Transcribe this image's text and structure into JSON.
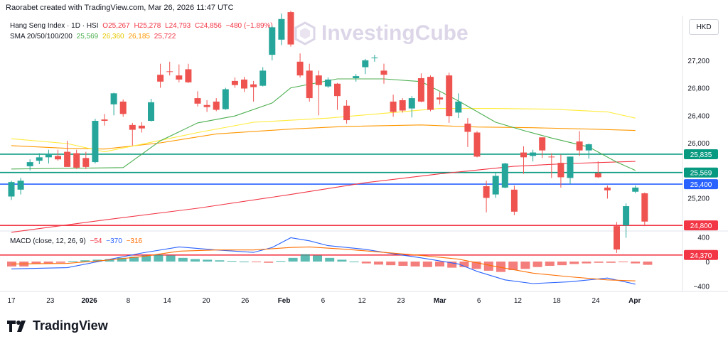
{
  "header": {
    "created_by": "Raorabet created with TradingView.com, Mar 26, 2026 11:47 UTC"
  },
  "legend": {
    "symbol": "Hang Seng Index · 1D · HSI",
    "o": "O25,267",
    "h": "H25,278",
    "l": "L24,793",
    "c": "C24,856",
    "change": "−480 (−1.89%)",
    "sma_label": "SMA 20/50/100/200",
    "sma20": "25,569",
    "sma50": "26,360",
    "sma100": "26,185",
    "sma200": "25,722",
    "macd_label": "MACD (close, 12, 26, 9)",
    "macd_hist": "−54",
    "macd_line": "−370",
    "macd_signal": "−316"
  },
  "currency_button": "HKD",
  "watermark": "InvestingCube",
  "branding": "TradingView",
  "colors": {
    "up": "#26a69a",
    "down": "#ef5350",
    "sma20": "#4caf50",
    "sma50": "#ffeb3b",
    "sma100": "#ff9800",
    "sma200": "#f23645",
    "macd_line": "#2962ff",
    "macd_signal": "#ff6d00",
    "hline_green": "#089981",
    "hline_blue": "#2962ff",
    "hline_red": "#f23645"
  },
  "chart_data": {
    "type": "candlestick",
    "price_axis": {
      "ticks": [
        "27,200",
        "26,800",
        "26,400",
        "26,000",
        "25,200"
      ],
      "tick_values": [
        27200,
        26800,
        26400,
        26000,
        25200
      ]
    },
    "horizontal_levels": [
      {
        "value": 25835,
        "label": "25,835",
        "color": "green"
      },
      {
        "value": 25569,
        "label": "25,569",
        "color": "green"
      },
      {
        "value": 25400,
        "label": "25,400",
        "color": "blue"
      },
      {
        "value": 24800,
        "label": "24,800",
        "color": "red"
      },
      {
        "value": 24370,
        "label": "24,370",
        "color": "red"
      }
    ],
    "macd_axis": {
      "ticks": [
        "400",
        "0",
        "−400"
      ],
      "tick_values": [
        400,
        0,
        -400
      ]
    },
    "time_axis": [
      "17",
      "23",
      "2026",
      "8",
      "14",
      "20",
      "26",
      "Feb",
      "6",
      "12",
      "23",
      "Mar",
      "6",
      "12",
      "18",
      "24",
      "Apr"
    ],
    "candles": [
      {
        "o": 25220,
        "h": 25450,
        "l": 25170,
        "c": 25430
      },
      {
        "o": 25320,
        "h": 25490,
        "l": 25250,
        "c": 25450
      },
      {
        "o": 25660,
        "h": 25760,
        "l": 25600,
        "c": 25720
      },
      {
        "o": 25740,
        "h": 25850,
        "l": 25690,
        "c": 25790
      },
      {
        "o": 25790,
        "h": 25900,
        "l": 25700,
        "c": 25840
      },
      {
        "o": 25810,
        "h": 25900,
        "l": 25740,
        "c": 25760
      },
      {
        "o": 25870,
        "h": 26030,
        "l": 25650,
        "c": 25650
      },
      {
        "o": 25850,
        "h": 25900,
        "l": 25620,
        "c": 25640
      },
      {
        "o": 25780,
        "h": 25870,
        "l": 25620,
        "c": 25650
      },
      {
        "o": 25720,
        "h": 26350,
        "l": 25700,
        "c": 26320
      },
      {
        "o": 26340,
        "h": 26420,
        "l": 26250,
        "c": 26320
      },
      {
        "o": 26560,
        "h": 26730,
        "l": 26400,
        "c": 26720
      },
      {
        "o": 26600,
        "h": 26630,
        "l": 26380,
        "c": 26420
      },
      {
        "o": 26260,
        "h": 26290,
        "l": 25960,
        "c": 26190
      },
      {
        "o": 26250,
        "h": 26300,
        "l": 26150,
        "c": 26210
      },
      {
        "o": 26320,
        "h": 26640,
        "l": 26310,
        "c": 26590
      },
      {
        "o": 26990,
        "h": 27150,
        "l": 26800,
        "c": 26890
      },
      {
        "o": 27040,
        "h": 27180,
        "l": 26980,
        "c": 27030
      },
      {
        "o": 26980,
        "h": 27140,
        "l": 26880,
        "c": 26920
      },
      {
        "o": 27070,
        "h": 27150,
        "l": 26870,
        "c": 26880
      },
      {
        "o": 26650,
        "h": 26750,
        "l": 26530,
        "c": 26570
      },
      {
        "o": 26550,
        "h": 26620,
        "l": 26450,
        "c": 26520
      },
      {
        "o": 26600,
        "h": 26650,
        "l": 26460,
        "c": 26480
      },
      {
        "o": 26490,
        "h": 26800,
        "l": 26480,
        "c": 26780
      },
      {
        "o": 26900,
        "h": 26950,
        "l": 26800,
        "c": 26840
      },
      {
        "o": 26920,
        "h": 26960,
        "l": 26740,
        "c": 26790
      },
      {
        "o": 26850,
        "h": 26900,
        "l": 26600,
        "c": 26810
      },
      {
        "o": 26830,
        "h": 27100,
        "l": 26820,
        "c": 27050
      },
      {
        "o": 27280,
        "h": 27700,
        "l": 27200,
        "c": 27680
      },
      {
        "o": 27500,
        "h": 27880,
        "l": 27420,
        "c": 27800
      },
      {
        "o": 27900,
        "h": 27920,
        "l": 27400,
        "c": 27430
      },
      {
        "o": 27180,
        "h": 27300,
        "l": 26950,
        "c": 26980
      },
      {
        "o": 27050,
        "h": 27150,
        "l": 26600,
        "c": 26650
      },
      {
        "o": 26980,
        "h": 27050,
        "l": 26400,
        "c": 26840
      },
      {
        "o": 26820,
        "h": 26950,
        "l": 26800,
        "c": 26920
      },
      {
        "o": 26860,
        "h": 26870,
        "l": 26480,
        "c": 26680
      },
      {
        "o": 26540,
        "h": 26620,
        "l": 26280,
        "c": 26330
      },
      {
        "o": 26940,
        "h": 27000,
        "l": 26890,
        "c": 26970
      },
      {
        "o": 27100,
        "h": 27220,
        "l": 27000,
        "c": 27200
      },
      {
        "o": 27240,
        "h": 27280,
        "l": 27180,
        "c": 27240
      },
      {
        "o": 27050,
        "h": 27150,
        "l": 26860,
        "c": 26990
      },
      {
        "o": 26600,
        "h": 26700,
        "l": 26380,
        "c": 26450
      },
      {
        "o": 26620,
        "h": 26650,
        "l": 26440,
        "c": 26470
      },
      {
        "o": 26500,
        "h": 26680,
        "l": 26370,
        "c": 26650
      },
      {
        "o": 26940,
        "h": 27010,
        "l": 26590,
        "c": 26600
      },
      {
        "o": 26960,
        "h": 26980,
        "l": 26460,
        "c": 26480
      },
      {
        "o": 26660,
        "h": 26740,
        "l": 26560,
        "c": 26630
      },
      {
        "o": 26980,
        "h": 27020,
        "l": 26290,
        "c": 26390
      },
      {
        "o": 26440,
        "h": 26720,
        "l": 26360,
        "c": 26600
      },
      {
        "o": 26280,
        "h": 26360,
        "l": 25940,
        "c": 26160
      },
      {
        "o": 26150,
        "h": 26170,
        "l": 25790,
        "c": 25800
      },
      {
        "o": 25370,
        "h": 25450,
        "l": 24990,
        "c": 25200
      },
      {
        "o": 25250,
        "h": 25560,
        "l": 25200,
        "c": 25520
      },
      {
        "o": 25350,
        "h": 25710,
        "l": 25340,
        "c": 25700
      },
      {
        "o": 25320,
        "h": 25380,
        "l": 24950,
        "c": 25000
      },
      {
        "o": 25860,
        "h": 25950,
        "l": 25550,
        "c": 25790
      },
      {
        "o": 25810,
        "h": 25900,
        "l": 25730,
        "c": 25860
      },
      {
        "o": 26080,
        "h": 26080,
        "l": 25780,
        "c": 25890
      },
      {
        "o": 25800,
        "h": 25850,
        "l": 25490,
        "c": 25790
      },
      {
        "o": 25710,
        "h": 25830,
        "l": 25350,
        "c": 25500
      },
      {
        "o": 25490,
        "h": 25800,
        "l": 25400,
        "c": 25800
      },
      {
        "o": 26020,
        "h": 26170,
        "l": 25810,
        "c": 25890
      },
      {
        "o": 25890,
        "h": 25990,
        "l": 25770,
        "c": 25980
      },
      {
        "o": 25560,
        "h": 25730,
        "l": 25490,
        "c": 25500
      },
      {
        "o": 25350,
        "h": 25380,
        "l": 25190,
        "c": 25310
      },
      {
        "o": 24790,
        "h": 24850,
        "l": 24400,
        "c": 24450
      },
      {
        "o": 24800,
        "h": 25120,
        "l": 24620,
        "c": 25080
      },
      {
        "o": 25290,
        "h": 25380,
        "l": 25270,
        "c": 25350
      },
      {
        "o": 25267,
        "h": 25278,
        "l": 24793,
        "c": 24856
      }
    ],
    "sma20": [
      [
        0,
        25620
      ],
      [
        12,
        25640
      ],
      [
        16,
        26030
      ],
      [
        20,
        26290
      ],
      [
        24,
        26390
      ],
      [
        28,
        26580
      ],
      [
        30,
        26800
      ],
      [
        35,
        26930
      ],
      [
        40,
        26930
      ],
      [
        44,
        26890
      ],
      [
        48,
        26610
      ],
      [
        52,
        26300
      ],
      [
        55,
        26180
      ],
      [
        58,
        26070
      ],
      [
        62,
        25940
      ],
      [
        65,
        25720
      ],
      [
        67,
        25600
      ]
    ],
    "sma50": [
      [
        0,
        26060
      ],
      [
        6,
        25990
      ],
      [
        10,
        25870
      ],
      [
        14,
        25980
      ],
      [
        20,
        26150
      ],
      [
        26,
        26300
      ],
      [
        34,
        26360
      ],
      [
        40,
        26430
      ],
      [
        46,
        26500
      ],
      [
        52,
        26500
      ],
      [
        58,
        26490
      ],
      [
        64,
        26450
      ],
      [
        67,
        26360
      ]
    ],
    "sma100": [
      [
        0,
        25960
      ],
      [
        6,
        25920
      ],
      [
        10,
        25910
      ],
      [
        16,
        26000
      ],
      [
        22,
        26130
      ],
      [
        30,
        26200
      ],
      [
        36,
        26240
      ],
      [
        44,
        26260
      ],
      [
        50,
        26230
      ],
      [
        56,
        26220
      ],
      [
        62,
        26200
      ],
      [
        67,
        26180
      ]
    ],
    "sma200": [
      [
        0,
        24700
      ],
      [
        10,
        24880
      ],
      [
        20,
        25050
      ],
      [
        30,
        25250
      ],
      [
        38,
        25420
      ],
      [
        46,
        25550
      ],
      [
        54,
        25660
      ],
      [
        60,
        25700
      ],
      [
        67,
        25730
      ]
    ],
    "macd_line": [
      [
        0,
        -120
      ],
      [
        6,
        -100
      ],
      [
        10,
        20
      ],
      [
        14,
        140
      ],
      [
        18,
        240
      ],
      [
        22,
        190
      ],
      [
        26,
        150
      ],
      [
        28,
        230
      ],
      [
        30,
        390
      ],
      [
        32,
        340
      ],
      [
        34,
        260
      ],
      [
        38,
        200
      ],
      [
        40,
        150
      ],
      [
        44,
        60
      ],
      [
        48,
        -40
      ],
      [
        50,
        -160
      ],
      [
        53,
        -300
      ],
      [
        56,
        -360
      ],
      [
        60,
        -330
      ],
      [
        64,
        -270
      ],
      [
        67,
        -370
      ]
    ],
    "macd_signal": [
      [
        0,
        -40
      ],
      [
        6,
        -30
      ],
      [
        10,
        20
      ],
      [
        14,
        80
      ],
      [
        18,
        170
      ],
      [
        22,
        190
      ],
      [
        26,
        190
      ],
      [
        30,
        230
      ],
      [
        32,
        240
      ],
      [
        36,
        200
      ],
      [
        40,
        150
      ],
      [
        44,
        100
      ],
      [
        48,
        40
      ],
      [
        52,
        -80
      ],
      [
        56,
        -190
      ],
      [
        60,
        -250
      ],
      [
        64,
        -300
      ],
      [
        67,
        -316
      ]
    ],
    "macd_hist": [
      -80,
      -80,
      -40,
      -30,
      -20,
      10,
      20,
      30,
      40,
      60,
      80,
      100,
      110,
      100,
      60,
      40,
      30,
      20,
      10,
      0,
      -10,
      -20,
      10,
      60,
      120,
      100,
      60,
      30,
      0,
      -30,
      -50,
      -60,
      -70,
      -80,
      -90,
      -80,
      -100,
      -90,
      -120,
      -150,
      -170,
      -140,
      -120,
      -90,
      -70,
      -60,
      -40,
      -30,
      -20,
      -20,
      -10,
      -30,
      -54
    ]
  }
}
